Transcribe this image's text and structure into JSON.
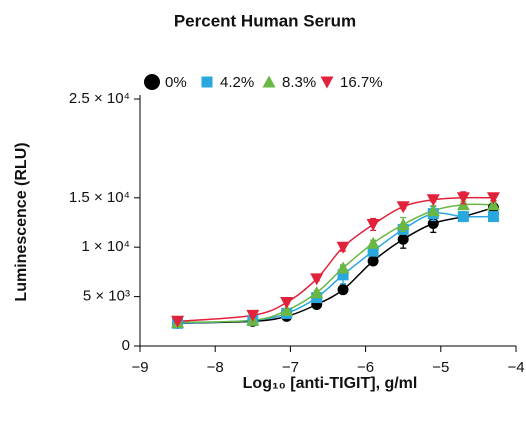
{
  "chart_data": {
    "type": "line",
    "title": "Percent Human Serum",
    "x_label": "Log₁₀ [anti-TIGIT], g/ml",
    "y_label": "Luminescence (RLU)",
    "x": [
      -8.5,
      -7.5,
      -7.05,
      -6.65,
      -6.3,
      -5.9,
      -5.5,
      -5.1,
      -4.7,
      -4.3
    ],
    "series": [
      {
        "name": "0%",
        "color": "#000000",
        "marker": "circle",
        "values": [
          2300,
          2500,
          3000,
          4200,
          5700,
          8600,
          10800,
          12400,
          13100,
          14000
        ],
        "errors": [
          150,
          150,
          150,
          150,
          200,
          200,
          900,
          900,
          300,
          700
        ]
      },
      {
        "name": "4.2%",
        "color": "#29a8e0",
        "marker": "square",
        "values": [
          2300,
          2600,
          3300,
          4900,
          7200,
          9600,
          11800,
          13400,
          13100,
          13100
        ],
        "errors": [
          150,
          150,
          150,
          200,
          900,
          300,
          400,
          700,
          300,
          300
        ]
      },
      {
        "name": "8.3%",
        "color": "#6ab744",
        "marker": "triangle-up",
        "values": [
          2400,
          2600,
          3600,
          5400,
          7900,
          10400,
          12300,
          13700,
          14300,
          14300
        ],
        "errors": [
          150,
          150,
          150,
          200,
          300,
          300,
          700,
          500,
          300,
          300
        ]
      },
      {
        "name": "16.7%",
        "color": "#e0233b",
        "marker": "triangle-down",
        "values": [
          2500,
          3100,
          4400,
          6800,
          10000,
          12300,
          14100,
          14800,
          15000,
          15000
        ],
        "errors": [
          150,
          150,
          150,
          200,
          400,
          600,
          200,
          200,
          600,
          300
        ]
      }
    ],
    "xlim": [
      -9,
      -4
    ],
    "xticks": [
      {
        "value": -9,
        "label": "−9"
      },
      {
        "value": -8,
        "label": "−8"
      },
      {
        "value": -7,
        "label": "−7"
      },
      {
        "value": -6,
        "label": "−6"
      },
      {
        "value": -5,
        "label": "−5"
      },
      {
        "value": -4,
        "label": "−4"
      }
    ],
    "ylim": [
      0,
      25000
    ],
    "yticks": [
      0,
      {
        "value": 5000,
        "label": "5 × 10³"
      },
      {
        "value": 10000,
        "label": "1 × 10⁴"
      },
      {
        "value": 15000,
        "label": "1.5 × 10⁴"
      },
      {
        "value": 25000,
        "label": "2.5 × 10⁴"
      }
    ],
    "grid": false
  }
}
